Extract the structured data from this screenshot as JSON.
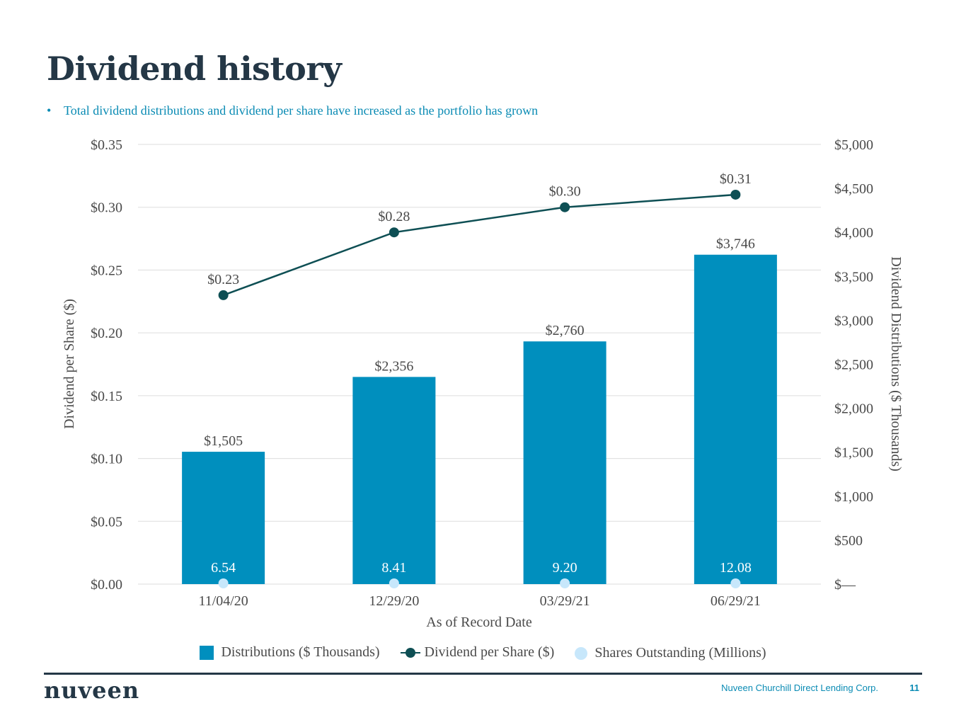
{
  "page": {
    "title": "Dividend history",
    "bullet_marker": "•",
    "bullet": "Total dividend distributions and dividend per share have increased as the portfolio has grown",
    "footer_company": "Nuveen Churchill Direct Lending Corp.",
    "page_number": "11",
    "logo_text": "nuveen"
  },
  "colors": {
    "bar": "#008fbe",
    "line": "#0e4f54",
    "shares_dot": "#c7e7fb",
    "grid": "#dddddd",
    "text": "#4a4a4a",
    "title": "#243746",
    "accent": "#0a8bb4"
  },
  "chart_data": {
    "type": "bar",
    "categories": [
      "11/04/20",
      "12/29/20",
      "03/29/21",
      "06/29/21"
    ],
    "xlabel": "As of Record Date",
    "ylabel": "Dividend per Share ($)",
    "y2label": "Dividend Distributions ($ Thousands)",
    "ylim": [
      0,
      0.35
    ],
    "y2lim": [
      0,
      5000
    ],
    "y_ticks": [
      0,
      0.05,
      0.1,
      0.15,
      0.2,
      0.25,
      0.3,
      0.35
    ],
    "y_tick_labels": [
      "$0.00",
      "$0.05",
      "$0.10",
      "$0.15",
      "$0.20",
      "$0.25",
      "$0.30",
      "$0.35"
    ],
    "y2_ticks": [
      0,
      500,
      1000,
      1500,
      2000,
      2500,
      3000,
      3500,
      4000,
      4500,
      5000
    ],
    "y2_tick_labels": [
      "$—",
      "$500",
      "$1,000",
      "$1,500",
      "$2,000",
      "$2,500",
      "$3,000",
      "$3,500",
      "$4,000",
      "$4,500",
      "$5,000"
    ],
    "grid": true,
    "legend_position": "bottom",
    "series": [
      {
        "name": "Distributions ($ Thousands)",
        "kind": "bar",
        "axis": "right",
        "values": [
          1505,
          2356,
          2760,
          3746
        ],
        "labels": [
          "$1,505",
          "$2,356",
          "$2,760",
          "$3,746"
        ]
      },
      {
        "name": "Dividend per Share ($)",
        "kind": "line",
        "axis": "left",
        "values": [
          0.23,
          0.28,
          0.3,
          0.31
        ],
        "labels": [
          "$0.23",
          "$0.28",
          "$0.30",
          "$0.31"
        ]
      },
      {
        "name": "Shares Outstanding (Millions)",
        "kind": "dot",
        "axis": "none",
        "values": [
          6.54,
          8.41,
          9.2,
          12.08
        ],
        "labels": [
          "6.54",
          "8.41",
          "9.20",
          "12.08"
        ]
      }
    ]
  }
}
